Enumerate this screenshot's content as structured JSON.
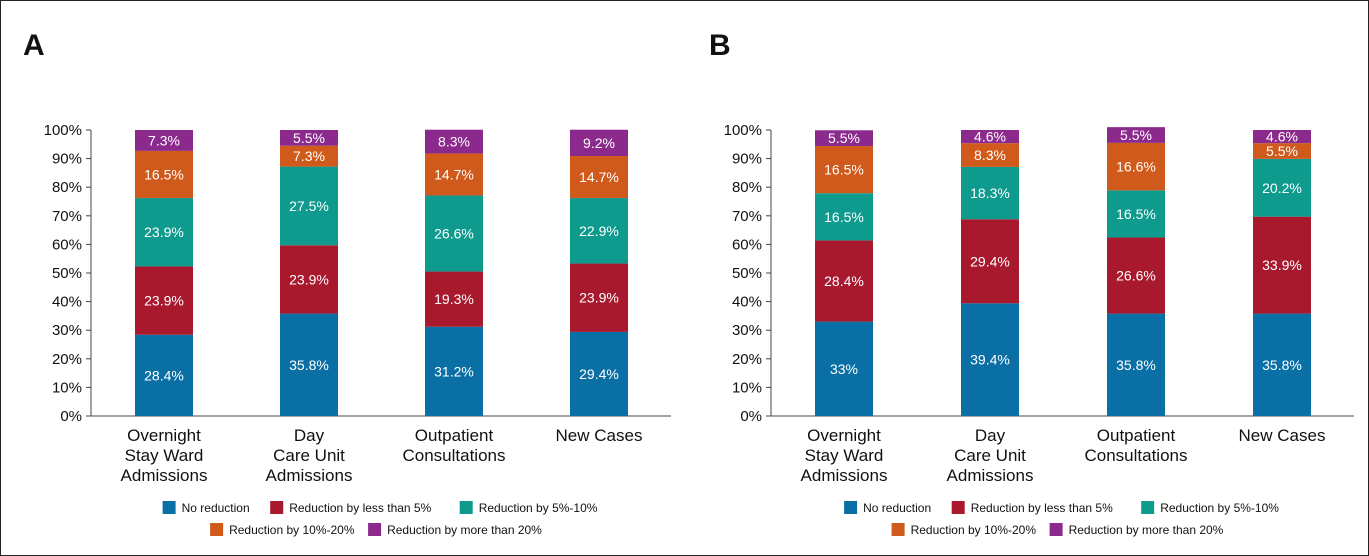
{
  "panels": [
    {
      "letter": "A"
    },
    {
      "letter": "B"
    }
  ],
  "legend": {
    "items": [
      {
        "label": "No reduction",
        "color": "#0a6fa4"
      },
      {
        "label": "Reduction by less than 5%",
        "color": "#a8192e"
      },
      {
        "label": "Reduction by 5%-10%",
        "color": "#0f9a8e"
      },
      {
        "label": "Reduction by 10%-20%",
        "color": "#cf5a1c"
      },
      {
        "label": "Reduction by more than 20%",
        "color": "#8b2a8c"
      }
    ]
  },
  "chart_data": [
    {
      "type": "bar",
      "stacked": true,
      "panel": "A",
      "categories": [
        [
          "Overnight",
          "Stay Ward",
          "Admissions"
        ],
        [
          "Day",
          "Care Unit",
          "Admissions"
        ],
        [
          "Outpatient",
          "Consultations"
        ],
        [
          "New Cases"
        ]
      ],
      "y_ticks": [
        "0%",
        "10%",
        "20%",
        "30%",
        "40%",
        "50%",
        "60%",
        "70%",
        "80%",
        "90%",
        "100%"
      ],
      "ylim": [
        0,
        100
      ],
      "series": [
        {
          "name": "No reduction",
          "values": [
            28.4,
            35.8,
            31.2,
            29.4
          ],
          "labels": [
            "28.4%",
            "35.8%",
            "31.2%",
            "29.4%"
          ]
        },
        {
          "name": "Reduction by less than 5%",
          "values": [
            23.9,
            23.9,
            19.3,
            23.9
          ],
          "labels": [
            "23.9%",
            "23.9%",
            "19.3%",
            "23.9%"
          ]
        },
        {
          "name": "Reduction by 5%-10%",
          "values": [
            23.9,
            27.5,
            26.6,
            22.9
          ],
          "labels": [
            "23.9%",
            "27.5%",
            "26.6%",
            "22.9%"
          ]
        },
        {
          "name": "Reduction by 10%-20%",
          "values": [
            16.5,
            7.3,
            14.7,
            14.7
          ],
          "labels": [
            "16.5%",
            "7.3%",
            "14.7%",
            "14.7%"
          ]
        },
        {
          "name": "Reduction by more than 20%",
          "values": [
            7.3,
            5.5,
            8.3,
            9.2
          ],
          "labels": [
            "7.3%",
            "5.5%",
            "8.3%",
            "9.2%"
          ]
        }
      ],
      "legend_position": "bottom"
    },
    {
      "type": "bar",
      "stacked": true,
      "panel": "B",
      "categories": [
        [
          "Overnight",
          "Stay Ward",
          "Admissions"
        ],
        [
          "Day",
          "Care Unit",
          "Admissions"
        ],
        [
          "Outpatient",
          "Consultations"
        ],
        [
          "New Cases"
        ]
      ],
      "y_ticks": [
        "0%",
        "10%",
        "20%",
        "30%",
        "40%",
        "50%",
        "60%",
        "70%",
        "80%",
        "90%",
        "100%"
      ],
      "ylim": [
        0,
        100
      ],
      "series": [
        {
          "name": "No reduction",
          "values": [
            33,
            39.4,
            35.8,
            35.8
          ],
          "labels": [
            "33%",
            "39.4%",
            "35.8%",
            "35.8%"
          ]
        },
        {
          "name": "Reduction by less than 5%",
          "values": [
            28.4,
            29.4,
            26.6,
            33.9
          ],
          "labels": [
            "28.4%",
            "29.4%",
            "26.6%",
            "33.9%"
          ]
        },
        {
          "name": "Reduction by 5%-10%",
          "values": [
            16.5,
            18.3,
            16.5,
            20.2
          ],
          "labels": [
            "16.5%",
            "18.3%",
            "16.5%",
            "20.2%"
          ]
        },
        {
          "name": "Reduction by 10%-20%",
          "values": [
            16.5,
            8.3,
            16.6,
            5.5
          ],
          "labels": [
            "16.5%",
            "8.3%",
            "16.6%",
            "5.5%"
          ]
        },
        {
          "name": "Reduction by more than 20%",
          "values": [
            5.5,
            4.6,
            5.5,
            4.6
          ],
          "labels": [
            "5.5%",
            "4.6%",
            "5.5%",
            "4.6%"
          ]
        }
      ],
      "legend_position": "bottom"
    }
  ]
}
